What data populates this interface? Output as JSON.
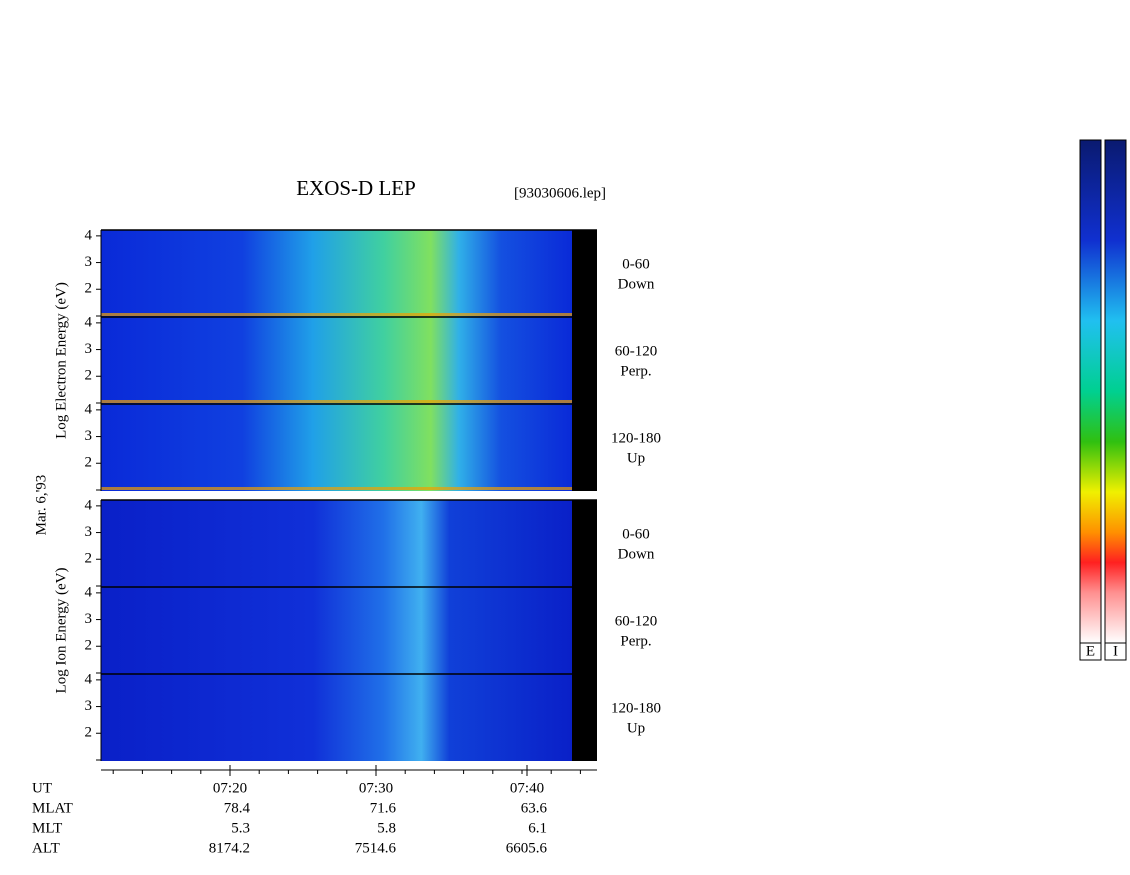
{
  "header": {
    "title": "EXOS-D LEP",
    "file": "[93030606.lep]"
  },
  "date_label": "Mar. 6,'93",
  "groups": [
    {
      "label": "Log  Electron  Energy (eV)",
      "panels": [
        {
          "range": "0-60",
          "direction": "Down"
        },
        {
          "range": "60-120",
          "direction": "Perp."
        },
        {
          "range": "120-180",
          "direction": "Up"
        }
      ]
    },
    {
      "label": "Log  Ion  Energy (eV)",
      "panels": [
        {
          "range": "0-60",
          "direction": "Down"
        },
        {
          "range": "60-120",
          "direction": "Perp."
        },
        {
          "range": "120-180",
          "direction": "Up"
        }
      ]
    }
  ],
  "energy_axis": {
    "ylim": [
      0.96,
      4.22
    ],
    "ticks": [
      4,
      3,
      2
    ]
  },
  "ephemeris": [
    {
      "name": "UT",
      "values": [
        "07:20",
        "07:30",
        "07:40"
      ]
    },
    {
      "name": "MLAT",
      "values": [
        "78.4",
        "71.6",
        "63.6"
      ]
    },
    {
      "name": "MLT",
      "values": [
        "5.3",
        "5.8",
        "6.1"
      ]
    },
    {
      "name": "ALT",
      "values": [
        "8174.2",
        "7514.6",
        "6605.6"
      ]
    }
  ],
  "colorbars": [
    {
      "label": "E"
    },
    {
      "label": "I"
    }
  ]
}
